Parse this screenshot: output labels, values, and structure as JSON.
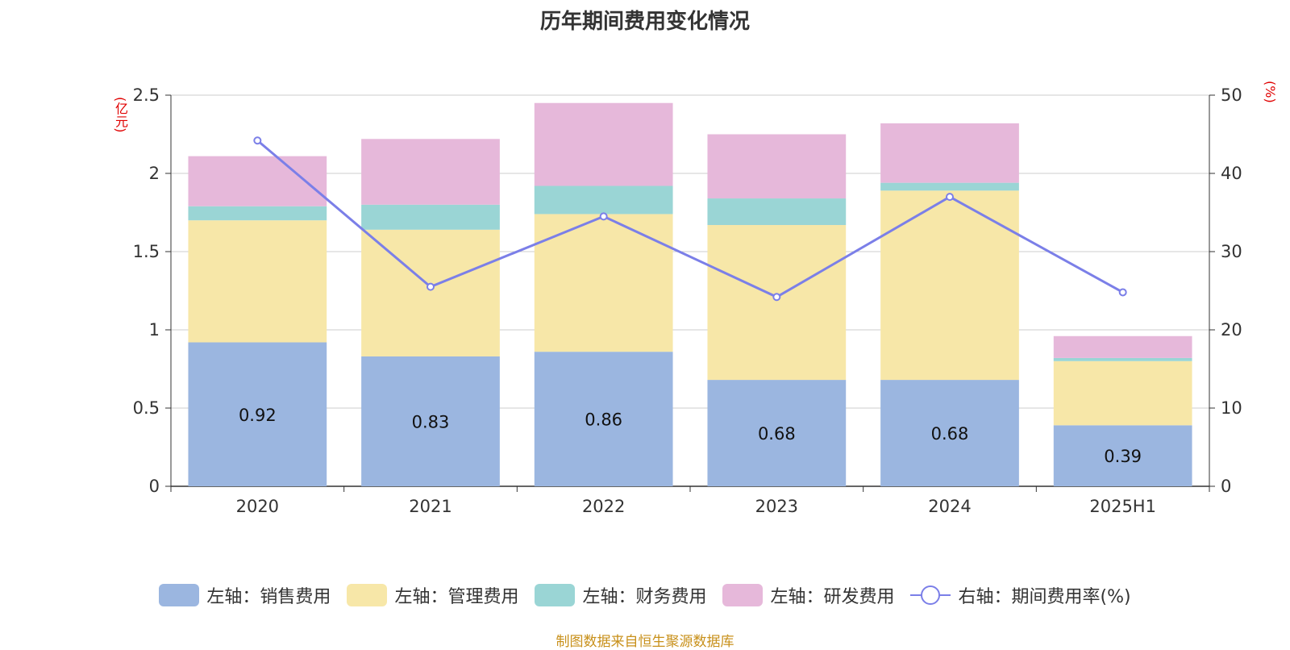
{
  "chart_data": {
    "type": "bar",
    "stacked": true,
    "title": "历年期间费用变化情况",
    "ylabel_left": "(亿元)",
    "ylabel_right": "(%)",
    "categories": [
      "2020",
      "2021",
      "2022",
      "2023",
      "2024",
      "2025H1"
    ],
    "ylim_left": [
      0,
      2.5
    ],
    "yticks_left": [
      0,
      0.5,
      1,
      1.5,
      2,
      2.5
    ],
    "ytick_labels_left": [
      "0",
      "0.5",
      "1",
      "1.5",
      "2",
      "2.5"
    ],
    "ylim_right": [
      0,
      50
    ],
    "yticks_right": [
      0,
      10,
      20,
      30,
      40,
      50
    ],
    "ytick_labels_right": [
      "0",
      "10",
      "20",
      "30",
      "40",
      "50"
    ],
    "grid": true,
    "legend_position": "bottom",
    "series": [
      {
        "name": "左轴：销售费用",
        "type": "bar",
        "axis": "left",
        "color": "#9bb6e0",
        "values": [
          0.92,
          0.83,
          0.86,
          0.68,
          0.68,
          0.39
        ],
        "data_labels": [
          "0.92",
          "0.83",
          "0.86",
          "0.68",
          "0.68",
          "0.39"
        ]
      },
      {
        "name": "左轴：管理费用",
        "type": "bar",
        "axis": "left",
        "color": "#f7e7a8",
        "values": [
          0.78,
          0.81,
          0.88,
          0.99,
          1.21,
          0.41
        ]
      },
      {
        "name": "左轴：财务费用",
        "type": "bar",
        "axis": "left",
        "color": "#9ad5d5",
        "values": [
          0.09,
          0.16,
          0.18,
          0.17,
          0.05,
          0.02
        ]
      },
      {
        "name": "左轴：研发费用",
        "type": "bar",
        "axis": "left",
        "color": "#e6b8da",
        "values": [
          0.32,
          0.42,
          0.53,
          0.41,
          0.38,
          0.14
        ]
      },
      {
        "name": "右轴：期间费用率(%)",
        "type": "line",
        "axis": "right",
        "color": "#7b7fe8",
        "values": [
          44.2,
          25.5,
          34.5,
          24.2,
          37.0,
          24.8
        ]
      }
    ]
  },
  "source": "制图数据来自恒生聚源数据库"
}
